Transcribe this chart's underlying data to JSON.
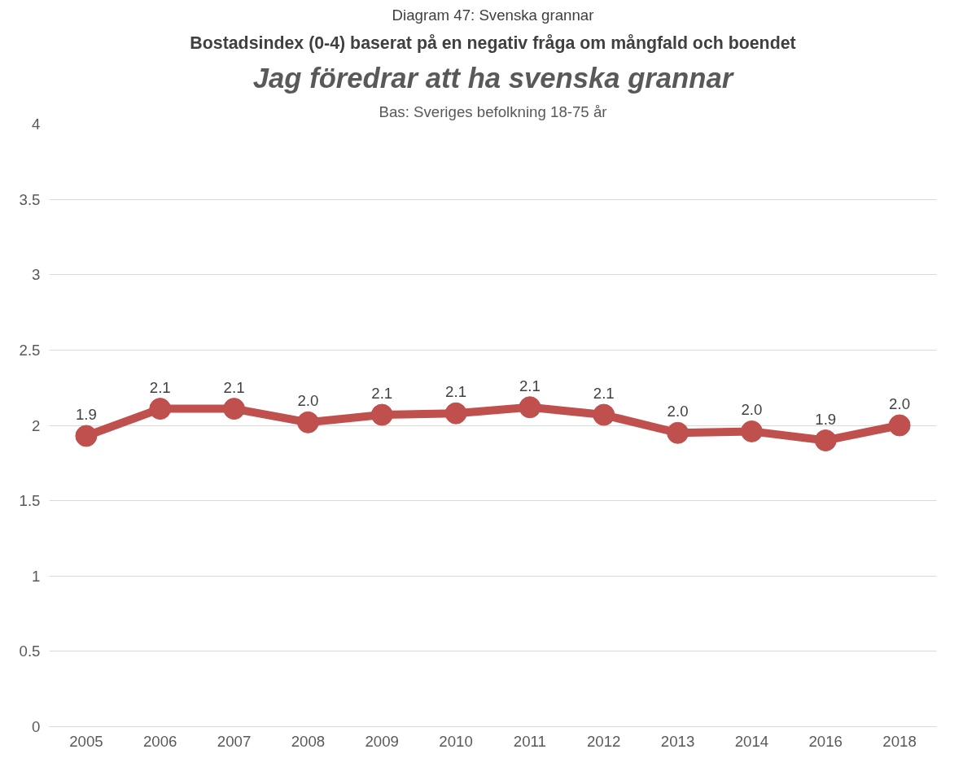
{
  "chart_data": {
    "type": "line",
    "title": "Diagram 47: Svenska grannar",
    "subtitle": "Bostadsindex (0-4) baserat på en negativ fråga om mångfald och boendet",
    "annotations": [
      "Jag föredrar att ha svenska grannar",
      "Bas: Sveriges befolkning 18-75 år"
    ],
    "categories": [
      "2005",
      "2006",
      "2007",
      "2008",
      "2009",
      "2010",
      "2011",
      "2012",
      "2013",
      "2014",
      "2016",
      "2018"
    ],
    "series": [
      {
        "color": "#c0504d",
        "values": [
          1.93,
          2.11,
          2.11,
          2.02,
          2.07,
          2.08,
          2.12,
          2.07,
          1.95,
          1.96,
          1.9,
          2.0
        ],
        "value_labels": [
          "1.9",
          "2.1",
          "2.1",
          "2.0",
          "2.1",
          "2.1",
          "2.1",
          "2.1",
          "2.0",
          "2.0",
          "1.9",
          "2.0"
        ]
      }
    ],
    "ylim": [
      0,
      4
    ],
    "yticks": [
      0,
      0.5,
      1,
      1.5,
      2,
      2.5,
      3,
      3.5,
      4
    ],
    "grid": "y",
    "marker": "circle",
    "line_style": "solid"
  }
}
